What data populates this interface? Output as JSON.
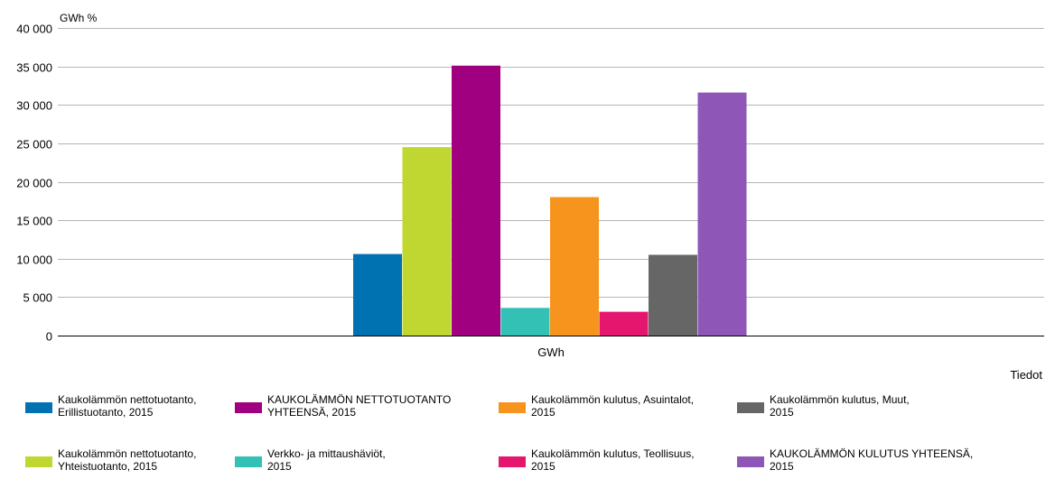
{
  "chart_data": {
    "type": "bar",
    "unit_label": "GWh %",
    "categories": [
      "GWh"
    ],
    "x_axis_title": "Tiedot",
    "ylim": [
      0,
      40000
    ],
    "yticks": [
      0,
      5000,
      10000,
      15000,
      20000,
      25000,
      30000,
      35000,
      40000
    ],
    "ytick_labels": [
      "0",
      "5 000",
      "10 000",
      "15 000",
      "20 000",
      "25 000",
      "30 000",
      "35 000",
      "40 000"
    ],
    "grid": true,
    "legend_position": "bottom",
    "series": [
      {
        "name": "Kaukolämmön nettotuotanto,\nErillistuotanto, 2015",
        "color": "#0072b2",
        "values": [
          10600
        ]
      },
      {
        "name": "Kaukolämmön nettotuotanto,\nYhteistuotanto, 2015",
        "color": "#c0d731",
        "values": [
          24500
        ]
      },
      {
        "name": "KAUKOLÄMMÖN NETTOTUOTANTO\nYHTEENSÄ, 2015",
        "color": "#a0007f",
        "values": [
          35100
        ]
      },
      {
        "name": "Verkko- ja mittaushäviöt,\n2015",
        "color": "#33c1b5",
        "values": [
          3600
        ]
      },
      {
        "name": "Kaukolämmön kulutus, Asuintalot,\n2015",
        "color": "#f7941d",
        "values": [
          18000
        ]
      },
      {
        "name": "Kaukolämmön kulutus, Teollisuus,\n2015",
        "color": "#e5166e",
        "values": [
          3100
        ]
      },
      {
        "name": "Kaukolämmön kulutus, Muut,\n2015",
        "color": "#666666",
        "values": [
          10500
        ]
      },
      {
        "name": "KAUKOLÄMMÖN KULUTUS YHTEENSÄ,\n2015",
        "color": "#8e57b7",
        "values": [
          31600
        ]
      }
    ],
    "legend_order": [
      0,
      2,
      4,
      6,
      1,
      3,
      5,
      7
    ]
  }
}
